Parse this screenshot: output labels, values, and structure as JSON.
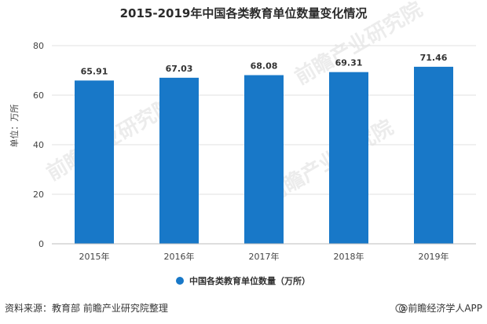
{
  "chart_data": {
    "type": "bar",
    "title": "2015-2019年中国各类教育单位数量变化情况",
    "categories": [
      "2015年",
      "2016年",
      "2017年",
      "2018年",
      "2019年"
    ],
    "series": [
      {
        "name": "中国各类教育单位数量（万所）",
        "values": [
          65.91,
          67.03,
          68.08,
          69.31,
          71.46
        ],
        "labels": [
          "65.91",
          "67.03",
          "68.08",
          "69.31",
          "71.46"
        ]
      }
    ],
    "ylabel": "单位：万所",
    "xlabel": "",
    "ylim": [
      0,
      80
    ],
    "yticks": [
      0,
      20,
      40,
      60,
      80
    ],
    "grid": true,
    "legend": "bottom-center",
    "colors": {
      "bar": "#1878c8",
      "grid": "#e2e2e2",
      "axis": "#bdbdbd"
    }
  },
  "footer": {
    "source": "资料来源：教育部 前瞻产业研究院整理",
    "brand": "@前瞻经济学人APP"
  },
  "watermark": {
    "text": "前瞻产业研究院"
  }
}
